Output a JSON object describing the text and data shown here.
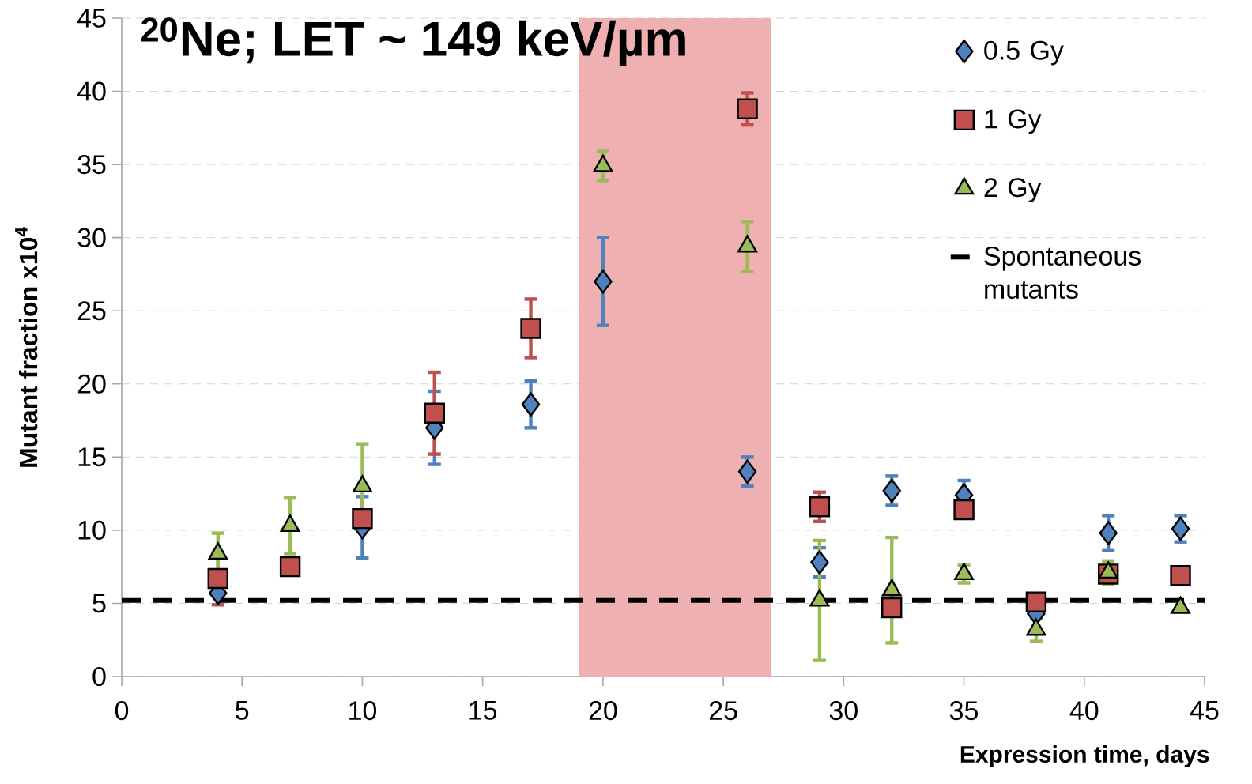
{
  "chart_data": {
    "type": "scatter",
    "title": "$^{20}$Ne; LET ~ 149 keV/µm",
    "xlabel": "Expression time, days",
    "ylabel": "Mutant fraction x10$^{4}$",
    "x": [
      4,
      7,
      10,
      13,
      17,
      20,
      26,
      29,
      32,
      35,
      38,
      41,
      44
    ],
    "series": [
      {
        "name": "0.5 Gy",
        "color": "#4f81bd",
        "marker": "diamond",
        "values": [
          5.7,
          null,
          10.2,
          17.0,
          18.6,
          27.0,
          14.0,
          7.8,
          12.7,
          12.4,
          4.3,
          9.8,
          10.1
        ],
        "errors": [
          null,
          null,
          2.1,
          2.5,
          1.6,
          3.0,
          1.0,
          1.0,
          1.0,
          1.0,
          null,
          1.2,
          0.9
        ]
      },
      {
        "name": "1 Gy",
        "color": "#c0504d",
        "marker": "square",
        "values": [
          6.7,
          7.5,
          10.8,
          18.0,
          23.8,
          null,
          38.8,
          11.6,
          4.7,
          11.4,
          5.1,
          7.0,
          6.9
        ],
        "errors": [
          1.8,
          null,
          null,
          2.8,
          2.0,
          null,
          1.1,
          1.0,
          null,
          null,
          null,
          null,
          null
        ]
      },
      {
        "name": "2 Gy",
        "color": "#9bbb59",
        "marker": "triangle",
        "values": [
          8.4,
          10.3,
          13.0,
          null,
          null,
          34.9,
          29.4,
          5.2,
          5.9,
          7.0,
          3.2,
          7.1,
          4.7
        ],
        "errors": [
          1.4,
          1.9,
          2.9,
          null,
          null,
          1.0,
          1.7,
          4.1,
          3.6,
          0.6,
          0.8,
          0.8,
          null
        ]
      }
    ],
    "ref_lines": [
      {
        "axis": "y",
        "value": 5.2,
        "label": "Spontaneous mutants",
        "color": "#000000",
        "line_style": "dashed"
      }
    ],
    "bands": [
      {
        "axis": "x",
        "from": 19,
        "to": 27,
        "color": "#eeb0b0"
      }
    ],
    "xlim": [
      0,
      45
    ],
    "ylim": [
      0,
      45
    ],
    "xticks": [
      0,
      5,
      10,
      15,
      20,
      25,
      30,
      35,
      40,
      45
    ],
    "yticks": [
      0,
      5,
      10,
      15,
      20,
      25,
      30,
      35,
      40,
      45
    ],
    "grid": "y",
    "legend": "top right"
  }
}
